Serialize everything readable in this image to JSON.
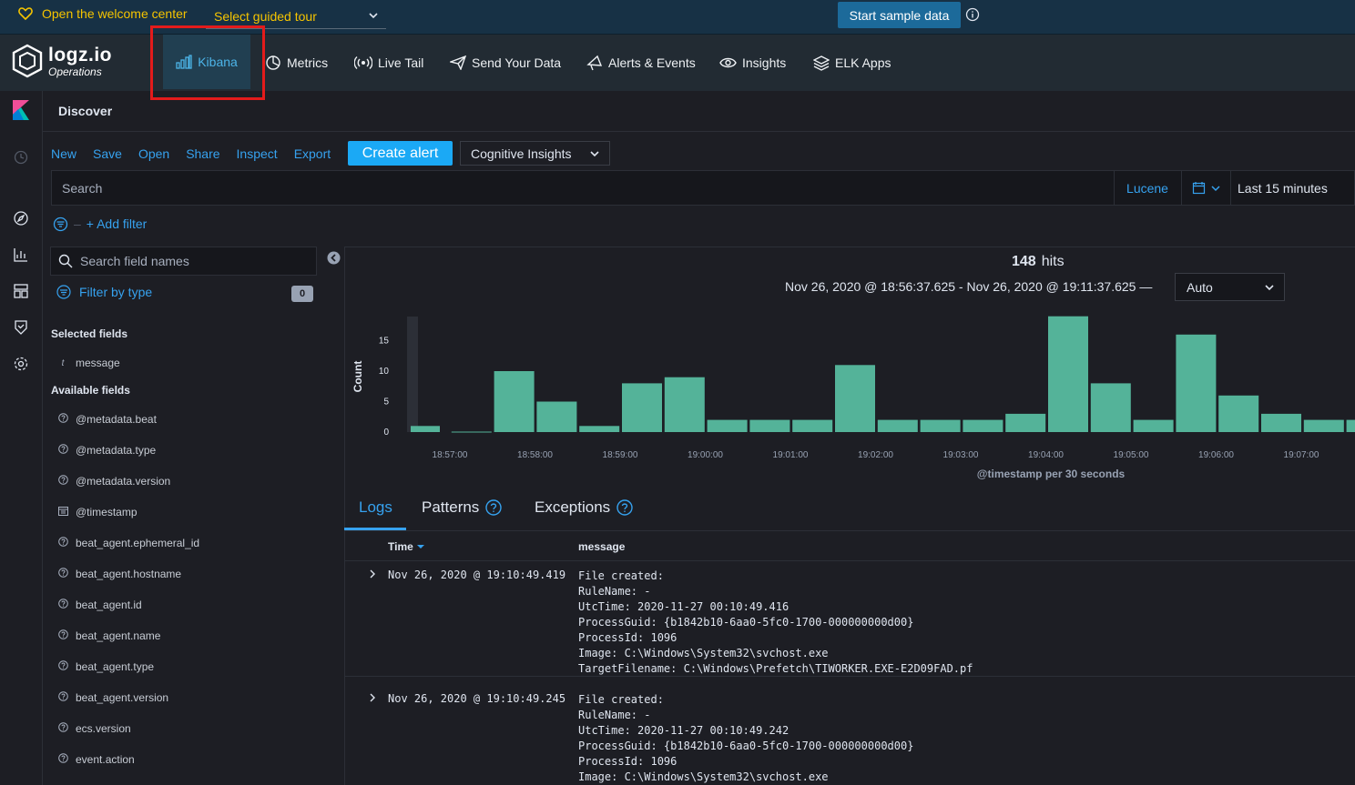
{
  "welcome": {
    "open_center": "Open the welcome center",
    "tour_select": "Select guided tour",
    "sample_button": "Start sample data"
  },
  "brand": {
    "name": "logz.io",
    "sub": "Operations"
  },
  "nav": {
    "items": [
      {
        "label": "Kibana",
        "icon": "bar-chart-icon",
        "active": true
      },
      {
        "label": "Metrics",
        "icon": "pie-chart-icon"
      },
      {
        "label": "Live Tail",
        "icon": "broadcast-icon"
      },
      {
        "label": "Send Your Data",
        "icon": "paper-plane-icon"
      },
      {
        "label": "Alerts & Events",
        "icon": "megaphone-icon"
      },
      {
        "label": "Insights",
        "icon": "eye-icon"
      },
      {
        "label": "ELK Apps",
        "icon": "layers-icon"
      }
    ]
  },
  "app": {
    "title": "Discover"
  },
  "menu": {
    "links": [
      "New",
      "Save",
      "Open",
      "Share",
      "Inspect",
      "Export"
    ],
    "create_alert": "Create alert",
    "cognitive": "Cognitive Insights"
  },
  "search": {
    "placeholder": "Search",
    "language": "Lucene",
    "time_range": "Last 15 minutes"
  },
  "filters": {
    "add_label": "+ Add filter"
  },
  "sidebar": {
    "field_search_placeholder": "Search field names",
    "filter_by_type": "Filter by type",
    "filter_count": "0",
    "selected_title": "Selected fields",
    "selected": [
      {
        "type": "t",
        "name": "message"
      }
    ],
    "available_title": "Available fields",
    "available": [
      {
        "type": "?",
        "name": "@metadata.beat"
      },
      {
        "type": "?",
        "name": "@metadata.type"
      },
      {
        "type": "?",
        "name": "@metadata.version"
      },
      {
        "type": "cal",
        "name": "@timestamp"
      },
      {
        "type": "?",
        "name": "beat_agent.ephemeral_id"
      },
      {
        "type": "?",
        "name": "beat_agent.hostname"
      },
      {
        "type": "?",
        "name": "beat_agent.id"
      },
      {
        "type": "?",
        "name": "beat_agent.name"
      },
      {
        "type": "?",
        "name": "beat_agent.type"
      },
      {
        "type": "?",
        "name": "beat_agent.version"
      },
      {
        "type": "?",
        "name": "ecs.version"
      },
      {
        "type": "?",
        "name": "event.action"
      }
    ]
  },
  "results": {
    "hits": "148",
    "hits_label": "hits",
    "range": "Nov 26, 2020 @ 18:56:37.625 - Nov 26, 2020 @ 19:11:37.625 —",
    "interval": "Auto"
  },
  "chart_data": {
    "type": "bar",
    "ylabel": "Count",
    "xlabel": "@timestamp per 30 seconds",
    "ylim": [
      0,
      19
    ],
    "yticks": [
      0,
      5,
      10,
      15
    ],
    "x_tick_labels": [
      "18:57:00",
      "18:58:00",
      "18:59:00",
      "19:00:00",
      "19:01:00",
      "19:02:00",
      "19:03:00",
      "19:04:00",
      "19:05:00",
      "19:06:00",
      "19:07:00"
    ],
    "categories": [
      "18:56:30",
      "18:57:00",
      "18:57:30",
      "18:58:00",
      "18:58:30",
      "18:59:00",
      "18:59:30",
      "19:00:00",
      "19:00:30",
      "19:01:00",
      "19:01:30",
      "19:02:00",
      "19:02:30",
      "19:03:00",
      "19:03:30",
      "19:04:00",
      "19:04:30",
      "19:05:00",
      "19:05:30",
      "19:06:00",
      "19:06:30",
      "19:07:00",
      "19:07:30"
    ],
    "values": [
      1,
      0,
      10,
      5,
      1,
      8,
      9,
      2,
      2,
      2,
      11,
      2,
      2,
      2,
      3,
      19,
      8,
      2,
      16,
      6,
      3,
      2,
      2
    ],
    "bar_color": "#54b399"
  },
  "tabs": [
    {
      "label": "Logs",
      "active": true
    },
    {
      "label": "Patterns"
    },
    {
      "label": "Exceptions"
    }
  ],
  "table": {
    "col_time": "Time",
    "col_message": "message",
    "rows": [
      {
        "time": "Nov 26, 2020 @ 19:10:49.419",
        "message": "File created:\nRuleName: -\nUtcTime: 2020-11-27 00:10:49.416\nProcessGuid: {b1842b10-6aa0-5fc0-1700-000000000d00}\nProcessId: 1096\nImage: C:\\Windows\\System32\\svchost.exe\nTargetFilename: C:\\Windows\\Prefetch\\TIWORKER.EXE-E2D09FAD.pf"
      },
      {
        "time": "Nov 26, 2020 @ 19:10:49.245",
        "message": "File created:\nRuleName: -\nUtcTime: 2020-11-27 00:10:49.242\nProcessGuid: {b1842b10-6aa0-5fc0-1700-000000000d00}\nProcessId: 1096\nImage: C:\\Windows\\System32\\svchost.exe"
      }
    ]
  }
}
